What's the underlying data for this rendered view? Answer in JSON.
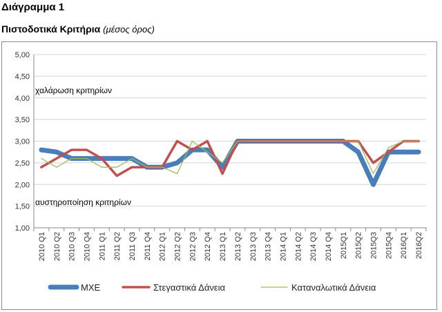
{
  "header": {
    "title": "Διάγραμμα 1",
    "subtitle": "Πιστοδοτικά Κριτήρια",
    "subtitle_note": "(μέσος όρος)"
  },
  "chart_data": {
    "type": "line",
    "title": "",
    "xlabel": "",
    "ylabel": "",
    "ylim": [
      1.0,
      5.0
    ],
    "y_ticks": [
      "1,00",
      "1,50",
      "2,00",
      "2,50",
      "3,00",
      "3,50",
      "4,00",
      "4,50",
      "5,00"
    ],
    "grid": "horizontal",
    "legend_position": "bottom",
    "categories": [
      "2010 Q1",
      "2010 Q2",
      "2010 Q3",
      "2010 Q4",
      "2011 Q1",
      "2011 Q2",
      "2011 Q3",
      "2011 Q4",
      "2012 Q1",
      "2012 Q2",
      "2012 Q3",
      "2012 Q4",
      "2013 Q1",
      "2013 Q2",
      "2013 Q3",
      "2013 Q4",
      "2014 Q1",
      "2014 Q2",
      "2014 Q3",
      "2014 Q4",
      "2015Q1",
      "2015Q2",
      "2015Q3",
      "2015Q4",
      "2016Q1",
      "2016Q2"
    ],
    "series": [
      {
        "name": "ΜΧΕ",
        "color": "#4a7ebb",
        "values": [
          2.8,
          2.75,
          2.6,
          2.6,
          2.6,
          2.6,
          2.6,
          2.4,
          2.4,
          2.5,
          2.8,
          2.8,
          2.4,
          3.0,
          3.0,
          3.0,
          3.0,
          3.0,
          3.0,
          3.0,
          3.0,
          2.75,
          2.0,
          2.75,
          2.75,
          2.75
        ]
      },
      {
        "name": "Στεγαστικά Δάνεια",
        "color": "#c0504d",
        "values": [
          2.4,
          2.6,
          2.8,
          2.8,
          2.6,
          2.2,
          2.4,
          2.4,
          2.4,
          3.0,
          2.8,
          3.0,
          2.25,
          3.0,
          3.0,
          3.0,
          3.0,
          3.0,
          3.0,
          3.0,
          3.0,
          3.0,
          2.5,
          2.75,
          3.0,
          3.0
        ]
      },
      {
        "name": "Καταναλωτικά Δάνεια",
        "color": "#9bbb59",
        "values": [
          2.6,
          2.4,
          2.6,
          2.6,
          2.4,
          2.4,
          2.6,
          2.4,
          2.4,
          2.25,
          3.0,
          2.75,
          2.5,
          3.0,
          3.0,
          3.0,
          3.0,
          3.0,
          3.0,
          3.0,
          3.0,
          3.0,
          2.25,
          2.85,
          3.0,
          3.0
        ]
      }
    ],
    "annotations": [
      "χαλάρωση κριτηρίων",
      "αυστηροποίηση κριτηρίων"
    ]
  }
}
